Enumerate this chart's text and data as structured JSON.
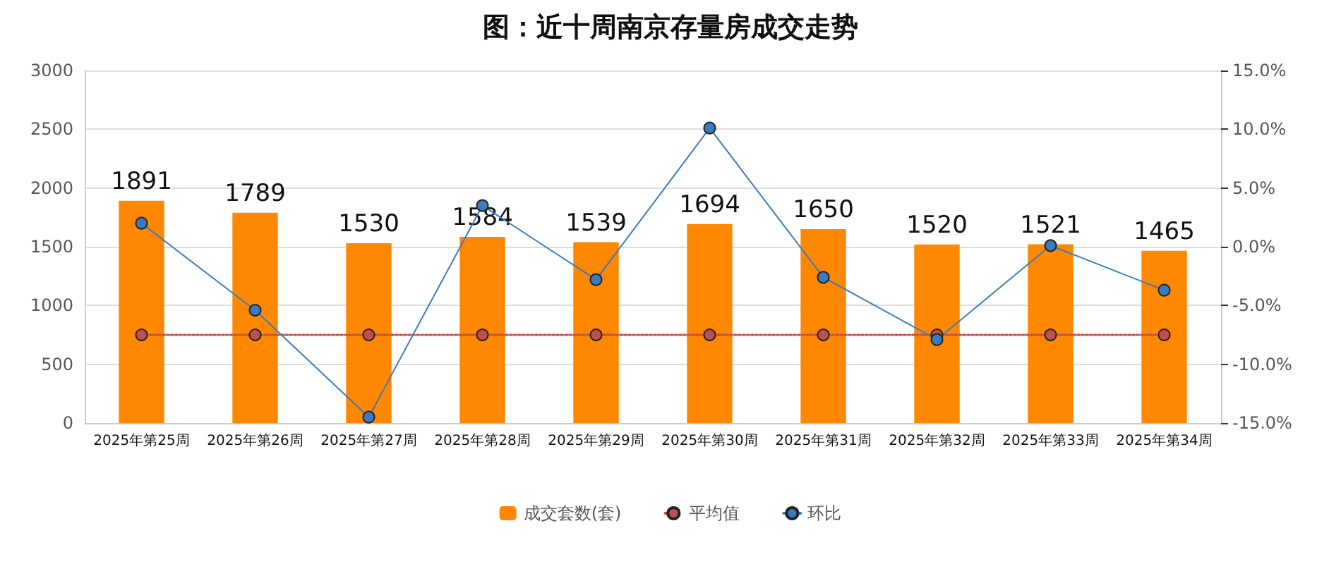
{
  "chart_data": {
    "type": "bar",
    "title": "图：近十周南京存量房成交走势",
    "categories": [
      "2025年第25周",
      "2025年第26周",
      "2025年第27周",
      "2025年第28周",
      "2025年第29周",
      "2025年第30周",
      "2025年第31周",
      "2025年第32周",
      "2025年第33周",
      "2025年第34周"
    ],
    "series": [
      {
        "name": "成交套数(套)",
        "color": "#ff8800",
        "values": [
          1891,
          1789,
          1530,
          1584,
          1539,
          1694,
          1650,
          1520,
          1521,
          1465
        ],
        "data_labels": true
      },
      {
        "name": "平均值",
        "type": "line",
        "color": "#c0504d",
        "values": [
          750,
          750,
          750,
          750,
          750,
          750,
          750,
          750,
          750,
          750
        ],
        "line_style": "dotted",
        "marker": "circle"
      },
      {
        "name": "环比",
        "type": "line",
        "axis": "y2",
        "color": "#3a7bbf",
        "values": [
          2.0,
          -5.4,
          -14.5,
          3.5,
          -2.8,
          10.1,
          -2.6,
          -7.9,
          0.1,
          -3.7
        ],
        "line_style": "solid",
        "marker": "circle"
      }
    ],
    "ylim": [
      0,
      3000
    ],
    "yticks": [
      0,
      500,
      1000,
      1500,
      2000,
      2500,
      3000
    ],
    "y2lim": [
      -15,
      15
    ],
    "y2ticks": [
      {
        "value": -15,
        "label": "-15.0%"
      },
      {
        "value": -10,
        "label": "-10.0%"
      },
      {
        "value": -5,
        "label": "-5.0%"
      },
      {
        "value": 0,
        "label": "0.0%"
      },
      {
        "value": 5,
        "label": "5.0%"
      },
      {
        "value": 10,
        "label": "10.0%"
      },
      {
        "value": 15,
        "label": "15.0%"
      }
    ],
    "grid": "y",
    "legend": "bottom"
  }
}
